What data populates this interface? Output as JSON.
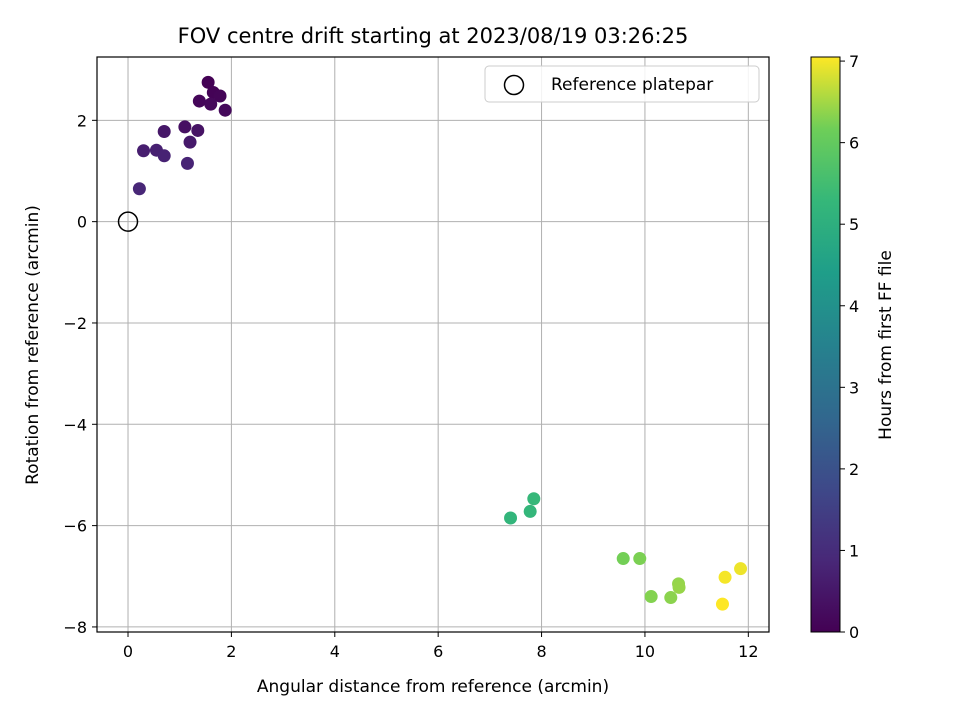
{
  "chart_data": {
    "type": "scatter",
    "title": "FOV centre drift starting at 2023/08/19 03:26:25",
    "xlabel": "Angular distance from reference (arcmin)",
    "ylabel": "Rotation from reference (arcmin)",
    "xlim": [
      -0.6,
      12.4
    ],
    "ylim": [
      -8.1,
      3.25
    ],
    "xticks": [
      0,
      2,
      4,
      6,
      8,
      10,
      12
    ],
    "yticks": [
      -8,
      -6,
      -4,
      -2,
      0,
      2
    ],
    "grid": true,
    "legend": {
      "position": "top-right",
      "entries": [
        "Reference platepar"
      ]
    },
    "reference_point": {
      "x": 0,
      "y": 0,
      "label": "Reference platepar",
      "marker": "open-circle"
    },
    "colorbar": {
      "label": "Hours from first FF file",
      "range": [
        0,
        7.05
      ],
      "ticks": [
        0,
        1,
        2,
        3,
        4,
        5,
        6,
        7
      ],
      "colormap": "viridis"
    },
    "points": [
      {
        "x": 1.55,
        "y": 2.75,
        "hours": 0.02
      },
      {
        "x": 1.65,
        "y": 2.55,
        "hours": 0.05
      },
      {
        "x": 1.78,
        "y": 2.48,
        "hours": 0.08
      },
      {
        "x": 1.38,
        "y": 2.38,
        "hours": 0.12
      },
      {
        "x": 1.6,
        "y": 2.32,
        "hours": 0.15
      },
      {
        "x": 1.88,
        "y": 2.2,
        "hours": 0.18
      },
      {
        "x": 1.1,
        "y": 1.87,
        "hours": 0.35
      },
      {
        "x": 1.35,
        "y": 1.8,
        "hours": 0.4
      },
      {
        "x": 0.7,
        "y": 1.78,
        "hours": 0.5
      },
      {
        "x": 1.2,
        "y": 1.57,
        "hours": 0.55
      },
      {
        "x": 0.3,
        "y": 1.4,
        "hours": 0.65
      },
      {
        "x": 0.55,
        "y": 1.41,
        "hours": 0.7
      },
      {
        "x": 0.7,
        "y": 1.3,
        "hours": 0.75
      },
      {
        "x": 1.15,
        "y": 1.15,
        "hours": 0.8
      },
      {
        "x": 0.22,
        "y": 0.65,
        "hours": 0.85
      },
      {
        "x": 7.4,
        "y": -5.85,
        "hours": 5.2
      },
      {
        "x": 7.78,
        "y": -5.72,
        "hours": 5.25
      },
      {
        "x": 7.85,
        "y": -5.47,
        "hours": 5.3
      },
      {
        "x": 9.58,
        "y": -6.65,
        "hours": 6.2
      },
      {
        "x": 9.9,
        "y": -6.65,
        "hours": 6.25
      },
      {
        "x": 10.12,
        "y": -7.4,
        "hours": 6.3
      },
      {
        "x": 10.5,
        "y": -7.42,
        "hours": 6.35
      },
      {
        "x": 10.65,
        "y": -7.15,
        "hours": 6.4
      },
      {
        "x": 10.66,
        "y": -7.22,
        "hours": 6.42
      },
      {
        "x": 11.85,
        "y": -6.85,
        "hours": 6.95
      },
      {
        "x": 11.55,
        "y": -7.02,
        "hours": 7.0
      },
      {
        "x": 11.5,
        "y": -7.55,
        "hours": 7.05
      }
    ]
  }
}
